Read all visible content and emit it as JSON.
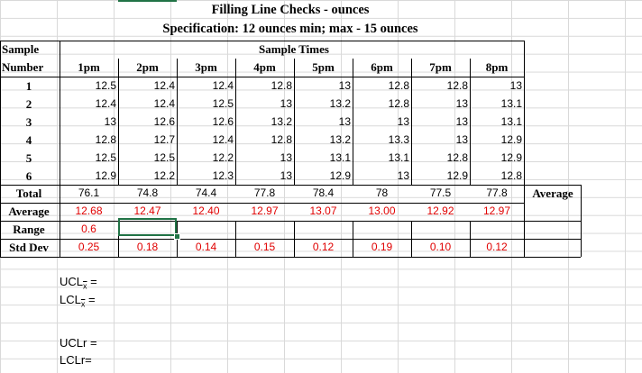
{
  "title": "Filling Line Checks - ounces",
  "specification": "Specification: 12 ounces min; max - 15 ounces",
  "header": {
    "sample": "Sample",
    "number": "Number",
    "sample_times": "Sample Times",
    "times": [
      "1pm",
      "2pm",
      "3pm",
      "4pm",
      "5pm",
      "6pm",
      "7pm",
      "8pm"
    ]
  },
  "rows": [
    {
      "label": "1",
      "values": [
        "12.5",
        "12.4",
        "12.4",
        "12.8",
        "13",
        "12.8",
        "12.8",
        "13"
      ]
    },
    {
      "label": "2",
      "values": [
        "12.4",
        "12.4",
        "12.5",
        "13",
        "13.2",
        "12.8",
        "13",
        "13.1"
      ]
    },
    {
      "label": "3",
      "values": [
        "13",
        "12.6",
        "12.6",
        "13.2",
        "13",
        "13",
        "13",
        "13.1"
      ]
    },
    {
      "label": "4",
      "values": [
        "12.8",
        "12.7",
        "12.4",
        "12.8",
        "13.2",
        "13.3",
        "13",
        "12.9"
      ]
    },
    {
      "label": "5",
      "values": [
        "12.5",
        "12.5",
        "12.2",
        "13",
        "13.1",
        "13.1",
        "12.8",
        "12.9"
      ]
    },
    {
      "label": "6",
      "values": [
        "12.9",
        "12.2",
        "12.3",
        "13",
        "12.9",
        "13",
        "12.9",
        "12.8"
      ]
    }
  ],
  "total": {
    "label": "Total",
    "values": [
      "76.1",
      "74.8",
      "74.4",
      "77.8",
      "78.4",
      "78",
      "77.5",
      "77.8"
    ],
    "average_header": "Average"
  },
  "average": {
    "label": "Average",
    "values": [
      "12.68",
      "12.47",
      "12.40",
      "12.97",
      "13.07",
      "13.00",
      "12.92",
      "12.97"
    ]
  },
  "range": {
    "label": "Range",
    "values": [
      "0.6",
      "",
      "",
      "",
      "",
      "",
      "",
      ""
    ]
  },
  "stddev": {
    "label": "Std Dev",
    "values": [
      "0.25",
      "0.18",
      "0.14",
      "0.15",
      "0.12",
      "0.19",
      "0.10",
      "0.12"
    ]
  },
  "formulas": {
    "ucl_x": "UCL",
    "lcl_x": "LCL",
    "sub_x": "x",
    "eq": " =",
    "ucl_r": "UCLr =",
    "lcl_r": "LCLr="
  },
  "colors": {
    "red": "#e00000",
    "selection": "#217346",
    "grid": "#d9d9d9"
  }
}
